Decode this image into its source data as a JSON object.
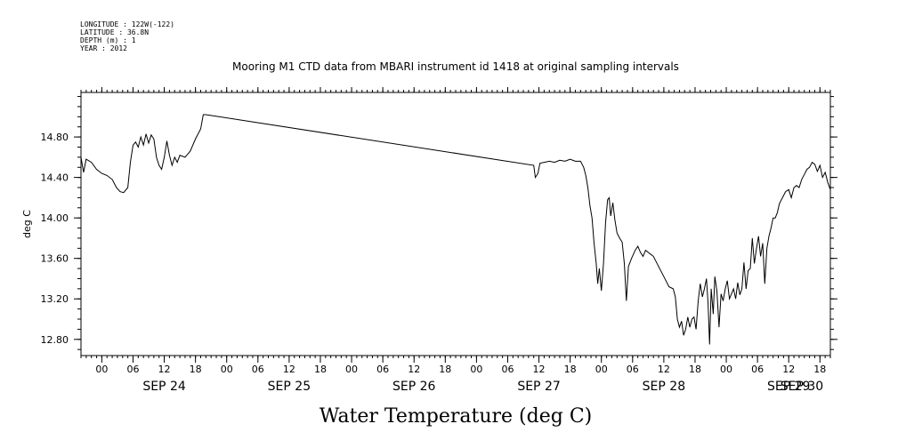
{
  "header": {
    "longitude": "LONGITUDE : 122W(-122)",
    "latitude": "LATITUDE : 36.8N",
    "depth": "DEPTH (m) : 1",
    "year": "YEAR : 2012"
  },
  "chart_data": {
    "type": "line",
    "title": "Mooring M1 CTD data from MBARI instrument id 1418 at original sampling intervals",
    "xlabel": "Water Temperature (deg C)",
    "ylabel": "deg C",
    "xlim": [
      -4,
      140
    ],
    "ylim": [
      12.64,
      15.24
    ],
    "yticks": [
      "12.80",
      "13.20",
      "13.60",
      "14.00",
      "14.40",
      "14.80"
    ],
    "ytick_values": [
      12.8,
      13.2,
      13.6,
      14.0,
      14.4,
      14.8
    ],
    "x_unit": "hours since 2012-09-24 00:00",
    "hour_ticks": [
      {
        "h": 0,
        "label": "00"
      },
      {
        "h": 6,
        "label": "06"
      },
      {
        "h": 12,
        "label": "12"
      },
      {
        "h": 18,
        "label": "18"
      },
      {
        "h": 24,
        "label": "00"
      },
      {
        "h": 30,
        "label": "06"
      },
      {
        "h": 36,
        "label": "12"
      },
      {
        "h": 42,
        "label": "18"
      },
      {
        "h": 48,
        "label": "00"
      },
      {
        "h": 54,
        "label": "06"
      },
      {
        "h": 60,
        "label": "12"
      },
      {
        "h": 66,
        "label": "18"
      },
      {
        "h": 72,
        "label": "00"
      },
      {
        "h": 78,
        "label": "06"
      },
      {
        "h": 84,
        "label": "12"
      },
      {
        "h": 90,
        "label": "18"
      },
      {
        "h": 96,
        "label": "00"
      },
      {
        "h": 102,
        "label": "06"
      },
      {
        "h": 108,
        "label": "12"
      },
      {
        "h": 114,
        "label": "18"
      },
      {
        "h": 120,
        "label": "00"
      },
      {
        "h": 126,
        "label": "06"
      },
      {
        "h": 132,
        "label": "12"
      },
      {
        "h": 138,
        "label": "18"
      }
    ],
    "day_labels": [
      {
        "h": 12,
        "label": "SEP 24"
      },
      {
        "h": 36,
        "label": "SEP 25"
      },
      {
        "h": 60,
        "label": "SEP 26"
      },
      {
        "h": 84,
        "label": "SEP 27"
      },
      {
        "h": 108,
        "label": "SEP 28"
      },
      {
        "h": 132,
        "label": "SEP 29"
      },
      {
        "h": 154,
        "label": "SEP 30"
      }
    ],
    "series": [
      {
        "points": [
          [
            -4,
            14.6
          ],
          [
            -3.5,
            14.45
          ],
          [
            -3,
            14.58
          ],
          [
            -2,
            14.55
          ],
          [
            -1,
            14.48
          ],
          [
            0,
            14.44
          ],
          [
            1,
            14.42
          ],
          [
            2,
            14.38
          ],
          [
            2.8,
            14.3
          ],
          [
            3.5,
            14.26
          ],
          [
            4.2,
            14.25
          ],
          [
            5,
            14.3
          ],
          [
            5.5,
            14.55
          ],
          [
            6,
            14.72
          ],
          [
            6.5,
            14.75
          ],
          [
            7,
            14.7
          ],
          [
            7.5,
            14.8
          ],
          [
            8,
            14.72
          ],
          [
            8.5,
            14.83
          ],
          [
            9,
            14.74
          ],
          [
            9.5,
            14.82
          ],
          [
            10,
            14.78
          ],
          [
            10.5,
            14.6
          ],
          [
            11,
            14.52
          ],
          [
            11.5,
            14.48
          ],
          [
            12,
            14.6
          ],
          [
            12.5,
            14.76
          ],
          [
            13,
            14.62
          ],
          [
            13.5,
            14.52
          ],
          [
            14,
            14.6
          ],
          [
            14.5,
            14.55
          ],
          [
            15,
            14.62
          ],
          [
            16,
            14.6
          ],
          [
            17,
            14.66
          ],
          [
            18,
            14.78
          ],
          [
            19,
            14.88
          ],
          [
            19.5,
            15.02
          ],
          [
            20,
            15.02
          ],
          [
            83,
            14.52
          ],
          [
            83.3,
            14.4
          ],
          [
            83.8,
            14.44
          ],
          [
            84.2,
            14.54
          ],
          [
            85,
            14.55
          ],
          [
            86,
            14.56
          ],
          [
            87,
            14.55
          ],
          [
            88,
            14.57
          ],
          [
            89,
            14.56
          ],
          [
            90,
            14.58
          ],
          [
            91,
            14.56
          ],
          [
            92,
            14.56
          ],
          [
            92.6,
            14.5
          ],
          [
            93,
            14.42
          ],
          [
            93.4,
            14.3
          ],
          [
            93.8,
            14.12
          ],
          [
            94.2,
            14.0
          ],
          [
            94.6,
            13.75
          ],
          [
            95,
            13.55
          ],
          [
            95.3,
            13.35
          ],
          [
            95.6,
            13.5
          ],
          [
            96,
            13.28
          ],
          [
            96.4,
            13.55
          ],
          [
            96.8,
            13.95
          ],
          [
            97.2,
            14.18
          ],
          [
            97.5,
            14.2
          ],
          [
            97.8,
            14.02
          ],
          [
            98.2,
            14.15
          ],
          [
            98.6,
            13.98
          ],
          [
            99,
            13.85
          ],
          [
            99.5,
            13.8
          ],
          [
            100,
            13.76
          ],
          [
            100.4,
            13.55
          ],
          [
            100.8,
            13.18
          ],
          [
            101.2,
            13.52
          ],
          [
            101.8,
            13.6
          ],
          [
            102.5,
            13.68
          ],
          [
            103,
            13.72
          ],
          [
            103.5,
            13.66
          ],
          [
            104,
            13.62
          ],
          [
            104.5,
            13.68
          ],
          [
            105,
            13.66
          ],
          [
            105.5,
            13.64
          ],
          [
            106,
            13.62
          ],
          [
            107,
            13.52
          ],
          [
            108,
            13.42
          ],
          [
            109,
            13.32
          ],
          [
            109.8,
            13.3
          ],
          [
            110.2,
            13.22
          ],
          [
            110.6,
            13.0
          ],
          [
            111,
            12.92
          ],
          [
            111.4,
            12.98
          ],
          [
            111.8,
            12.84
          ],
          [
            112.2,
            12.9
          ],
          [
            112.6,
            13.02
          ],
          [
            113,
            12.92
          ],
          [
            113.4,
            13.0
          ],
          [
            113.8,
            13.02
          ],
          [
            114.2,
            12.9
          ],
          [
            114.6,
            13.18
          ],
          [
            115,
            13.35
          ],
          [
            115.4,
            13.22
          ],
          [
            115.8,
            13.3
          ],
          [
            116.2,
            13.4
          ],
          [
            116.5,
            13.15
          ],
          [
            116.8,
            12.75
          ],
          [
            117.1,
            13.3
          ],
          [
            117.5,
            13.05
          ],
          [
            117.8,
            13.42
          ],
          [
            118.2,
            13.28
          ],
          [
            118.6,
            12.92
          ],
          [
            119,
            13.25
          ],
          [
            119.4,
            13.18
          ],
          [
            119.8,
            13.3
          ],
          [
            120.2,
            13.38
          ],
          [
            120.6,
            13.2
          ],
          [
            121,
            13.25
          ],
          [
            121.4,
            13.3
          ],
          [
            121.8,
            13.2
          ],
          [
            122.2,
            13.36
          ],
          [
            122.6,
            13.24
          ],
          [
            123,
            13.3
          ],
          [
            123.4,
            13.56
          ],
          [
            123.8,
            13.3
          ],
          [
            124.2,
            13.48
          ],
          [
            124.6,
            13.5
          ],
          [
            125,
            13.8
          ],
          [
            125.4,
            13.55
          ],
          [
            125.8,
            13.7
          ],
          [
            126.2,
            13.82
          ],
          [
            126.6,
            13.62
          ],
          [
            127,
            13.75
          ],
          [
            127.4,
            13.35
          ],
          [
            127.8,
            13.7
          ],
          [
            128.2,
            13.82
          ],
          [
            128.6,
            13.9
          ],
          [
            129,
            14.0
          ],
          [
            129.4,
            14.0
          ],
          [
            129.8,
            14.05
          ],
          [
            130.2,
            14.14
          ],
          [
            130.8,
            14.2
          ],
          [
            131.4,
            14.26
          ],
          [
            132,
            14.28
          ],
          [
            132.5,
            14.2
          ],
          [
            133,
            14.3
          ],
          [
            133.5,
            14.32
          ],
          [
            134,
            14.3
          ],
          [
            134.5,
            14.38
          ],
          [
            135,
            14.43
          ],
          [
            135.5,
            14.48
          ],
          [
            136,
            14.5
          ],
          [
            136.5,
            14.55
          ],
          [
            137,
            14.53
          ],
          [
            137.5,
            14.46
          ],
          [
            138,
            14.52
          ],
          [
            138.5,
            14.4
          ],
          [
            139,
            14.45
          ],
          [
            139.5,
            14.35
          ],
          [
            140,
            14.28
          ]
        ]
      }
    ]
  }
}
